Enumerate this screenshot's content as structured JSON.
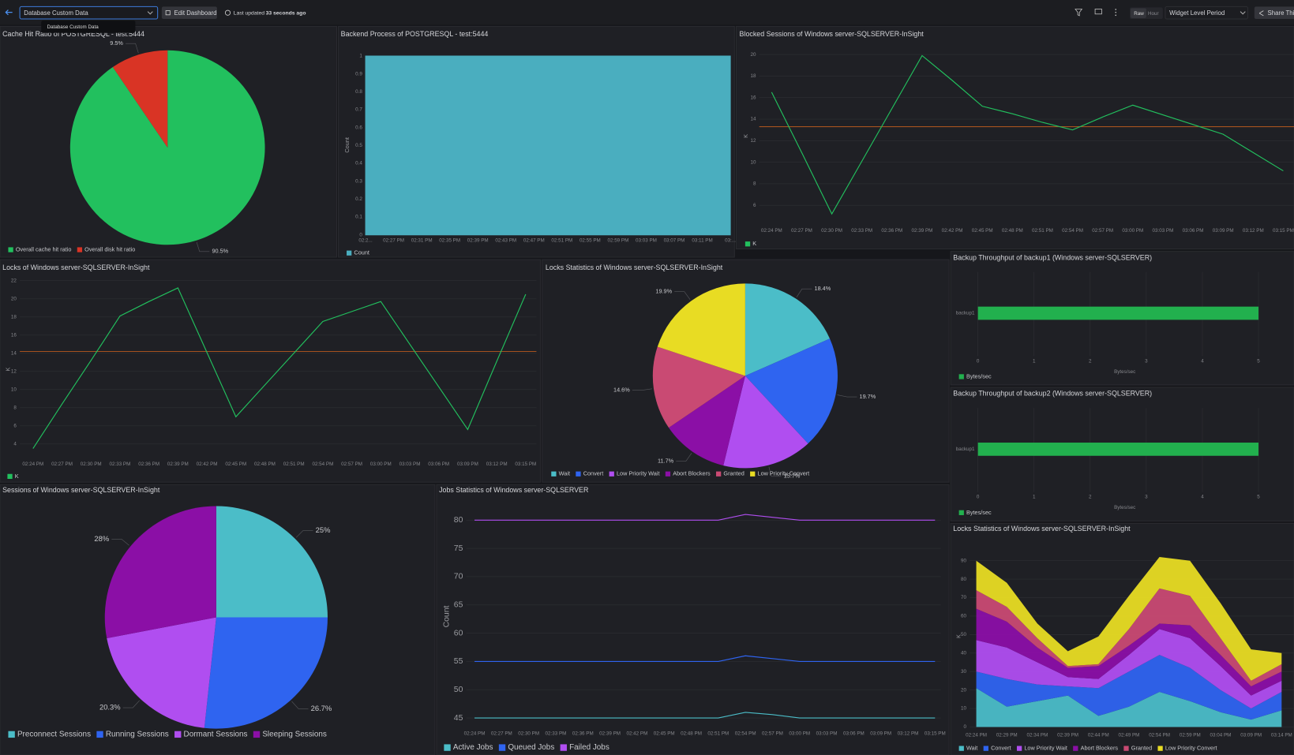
{
  "toolbar": {
    "dashboard": "Database Custom Data",
    "edit": "Edit Dashboard",
    "updated_prefix": "Last updated",
    "updated_time": "33 seconds ago",
    "tooltip": "Database Custom Data",
    "raw": "Raw",
    "hour": "Hour",
    "period": "Widget Level Period",
    "share": "Share This"
  },
  "chart_data": [
    {
      "type": "pie",
      "title": "Cache Hit Ratio of POSTGRESQL - test:5444",
      "categories": [
        "Overall cache hit ratio",
        "Overall disk hit ratio"
      ],
      "values": [
        90.5,
        9.5
      ],
      "value_labels": [
        "90.5%",
        "9.5%"
      ],
      "colors": [
        "#22c05e",
        "#d93425"
      ]
    },
    {
      "type": "area",
      "title": "Backend Process of POSTGRESQL - test:5444",
      "ylabel": "Count",
      "categories": [
        "02:2...",
        "02:27 PM",
        "02:31 PM",
        "02:35 PM",
        "02:39 PM",
        "02:43 PM",
        "02:47 PM",
        "02:51 PM",
        "02:55 PM",
        "02:59 PM",
        "03:03 PM",
        "03:07 PM",
        "03:11 PM",
        "03:..."
      ],
      "series": [
        {
          "name": "Count",
          "color": "#4aaebf",
          "values": [
            1,
            1,
            1,
            1,
            1,
            1,
            1,
            1,
            1,
            1,
            1,
            1,
            1,
            1
          ]
        }
      ],
      "ylim": [
        0,
        1
      ],
      "yticks": [
        0,
        0.1,
        0.2,
        0.3,
        0.4,
        0.5,
        0.6,
        0.7,
        0.8,
        0.9,
        1
      ]
    },
    {
      "type": "line",
      "title": "Blocked Sessions of Windows server-SQLSERVER-InSight",
      "ylabel": "K",
      "categories": [
        "02:24 PM",
        "02:27 PM",
        "02:30 PM",
        "02:33 PM",
        "02:36 PM",
        "02:39 PM",
        "02:42 PM",
        "02:45 PM",
        "02:48 PM",
        "02:51 PM",
        "02:54 PM",
        "02:57 PM",
        "03:00 PM",
        "03:03 PM",
        "03:06 PM",
        "03:09 PM",
        "03:12 PM",
        "03:15 PM"
      ],
      "series": [
        {
          "name": "K",
          "color": "#22c05e",
          "values": [
            16.5,
            10.9,
            5.2,
            10.1,
            15.0,
            19.9,
            17.6,
            15.2,
            14.5,
            13.7,
            13.0,
            14.2,
            15.3,
            14.4,
            13.5,
            12.6,
            10.9,
            9.2
          ]
        }
      ],
      "reference_line": {
        "value": 13.3,
        "color": "#a5521f"
      },
      "ylim": [
        4.4,
        20.7
      ],
      "yticks": [
        6,
        8,
        10,
        12,
        14,
        16,
        18,
        20
      ]
    },
    {
      "type": "line",
      "title": "Locks of Windows server-SQLSERVER-InSight",
      "ylabel": "K",
      "categories": [
        "02:24 PM",
        "02:27 PM",
        "02:30 PM",
        "02:33 PM",
        "02:36 PM",
        "02:39 PM",
        "02:42 PM",
        "02:45 PM",
        "02:48 PM",
        "02:51 PM",
        "02:54 PM",
        "02:57 PM",
        "03:00 PM",
        "03:03 PM",
        "03:06 PM",
        "03:09 PM",
        "03:12 PM",
        "03:15 PM"
      ],
      "series": [
        {
          "name": "K",
          "color": "#22c05e",
          "values": [
            3.5,
            8.4,
            13.2,
            18.1,
            19.7,
            21.2,
            14.1,
            7.0,
            10.5,
            14.0,
            17.5,
            18.6,
            19.7,
            15.0,
            10.3,
            5.6,
            13.1,
            20.5
          ]
        }
      ],
      "reference_line": {
        "value": 14.2,
        "color": "#a5521f"
      },
      "ylim": [
        2.7,
        22.5
      ],
      "yticks": [
        4,
        6,
        8,
        10,
        12,
        14,
        16,
        18,
        20,
        22
      ]
    },
    {
      "type": "pie",
      "title": "Locks Statistics of Windows server-SQLSERVER-InSight",
      "categories": [
        "Wait",
        "Convert",
        "Low Priority Wait",
        "Abort Blockers",
        "Granted",
        "Low Priority Convert"
      ],
      "values": [
        18.4,
        19.7,
        15.7,
        11.7,
        14.6,
        19.9
      ],
      "value_labels": [
        "18.4%",
        "19.7%",
        "15.7%",
        "11.7%",
        "14.6%",
        "19.9%"
      ],
      "colors": [
        "#4bbdc8",
        "#2f64f0",
        "#b04ef0",
        "#8b0fa6",
        "#c94a73",
        "#e8dc23"
      ]
    },
    {
      "type": "hbar",
      "title": "Backup Throughput of backup1 (Windows server-SQLSERVER)",
      "xlabel": "Bytes/sec",
      "categories": [
        "backup1"
      ],
      "series": [
        {
          "name": "Bytes/sec",
          "color": "#22b04e",
          "values": [
            5
          ]
        }
      ],
      "xlim": [
        0,
        5
      ],
      "xticks": [
        0,
        1,
        2,
        3,
        4,
        5
      ]
    },
    {
      "type": "hbar",
      "title": "Backup Throughput of backup2 (Windows server-SQLSERVER)",
      "xlabel": "Bytes/sec",
      "categories": [
        "backup1"
      ],
      "series": [
        {
          "name": "Bytes/sec",
          "color": "#22b04e",
          "values": [
            5
          ]
        }
      ],
      "xlim": [
        0,
        5
      ],
      "xticks": [
        0,
        1,
        2,
        3,
        4,
        5
      ]
    },
    {
      "type": "pie",
      "title": "Sessions of Windows server-SQLSERVER-InSight",
      "categories": [
        "Preconnect Sessions",
        "Running Sessions",
        "Dormant Sessions",
        "Sleeping Sessions"
      ],
      "values": [
        25,
        26.7,
        20.3,
        28
      ],
      "value_labels": [
        "25%",
        "26.7%",
        "20.3%",
        "28%"
      ],
      "colors": [
        "#4bbdc8",
        "#2f64f0",
        "#b04ef0",
        "#8b0fa6"
      ]
    },
    {
      "type": "line",
      "title": "Jobs Statistics of Windows server-SQLSERVER",
      "ylabel": "Count",
      "categories": [
        "02:24 PM",
        "02:27 PM",
        "02:30 PM",
        "02:33 PM",
        "02:36 PM",
        "02:39 PM",
        "02:42 PM",
        "02:45 PM",
        "02:48 PM",
        "02:51 PM",
        "02:54 PM",
        "02:57 PM",
        "03:00 PM",
        "03:03 PM",
        "03:06 PM",
        "03:09 PM",
        "03:12 PM",
        "03:15 PM"
      ],
      "series": [
        {
          "name": "Active Jobs",
          "color": "#4bbdc8",
          "values": [
            45,
            45,
            45,
            45,
            45,
            45,
            45,
            45,
            45,
            45,
            46,
            45.6,
            45,
            45,
            45,
            45,
            45,
            45
          ]
        },
        {
          "name": "Queued Jobs",
          "color": "#2f64f0",
          "values": [
            55,
            55,
            55,
            55,
            55,
            55,
            55,
            55,
            55,
            55,
            56,
            55.5,
            55,
            55,
            55,
            55,
            55,
            55
          ]
        },
        {
          "name": "Failed Jobs",
          "color": "#b04ef0",
          "values": [
            80,
            80,
            80,
            80,
            80,
            80,
            80,
            80,
            80,
            80,
            81,
            80.5,
            80,
            80,
            80,
            80,
            80,
            80
          ]
        }
      ],
      "ylim": [
        43.7,
        81.9
      ],
      "yticks": [
        45,
        50,
        55,
        60,
        65,
        70,
        75,
        80
      ]
    },
    {
      "type": "stacked_area",
      "title": "Locks Statistics of Windows server-SQLSERVER-InSight",
      "ylabel": "K",
      "categories": [
        "02:24 PM",
        "02:29 PM",
        "02:34 PM",
        "02:39 PM",
        "02:44 PM",
        "02:49 PM",
        "02:54 PM",
        "02:59 PM",
        "03:04 PM",
        "03:09 PM",
        "03:14 PM"
      ],
      "series": [
        {
          "name": "Wait",
          "color": "#4bbdc8",
          "values": [
            21,
            11,
            14,
            17,
            6,
            11,
            19,
            14,
            8,
            4,
            9
          ]
        },
        {
          "name": "Convert",
          "color": "#2f64f0",
          "values": [
            9,
            15,
            9,
            5,
            15,
            19,
            20,
            18,
            12,
            6,
            10
          ]
        },
        {
          "name": "Low Priority Wait",
          "color": "#b04ef0",
          "values": [
            17,
            17,
            12,
            5,
            5,
            9,
            14,
            16,
            13,
            7,
            6
          ]
        },
        {
          "name": "Abort Blockers",
          "color": "#8b0fa6",
          "values": [
            17,
            14,
            8,
            5,
            7,
            5,
            3,
            7,
            6,
            5,
            5
          ]
        },
        {
          "name": "Granted",
          "color": "#c94a73",
          "values": [
            10,
            8,
            5,
            1,
            1,
            9,
            19,
            16,
            9,
            3,
            4
          ]
        },
        {
          "name": "Low Priority Convert",
          "color": "#e8dc23",
          "values": [
            16,
            13,
            8,
            8,
            15,
            18,
            17,
            19,
            19,
            17,
            6
          ]
        }
      ],
      "ylim": [
        0,
        96.8
      ],
      "yticks": [
        0,
        10,
        20,
        30,
        40,
        50,
        60,
        70,
        80,
        90
      ]
    }
  ]
}
